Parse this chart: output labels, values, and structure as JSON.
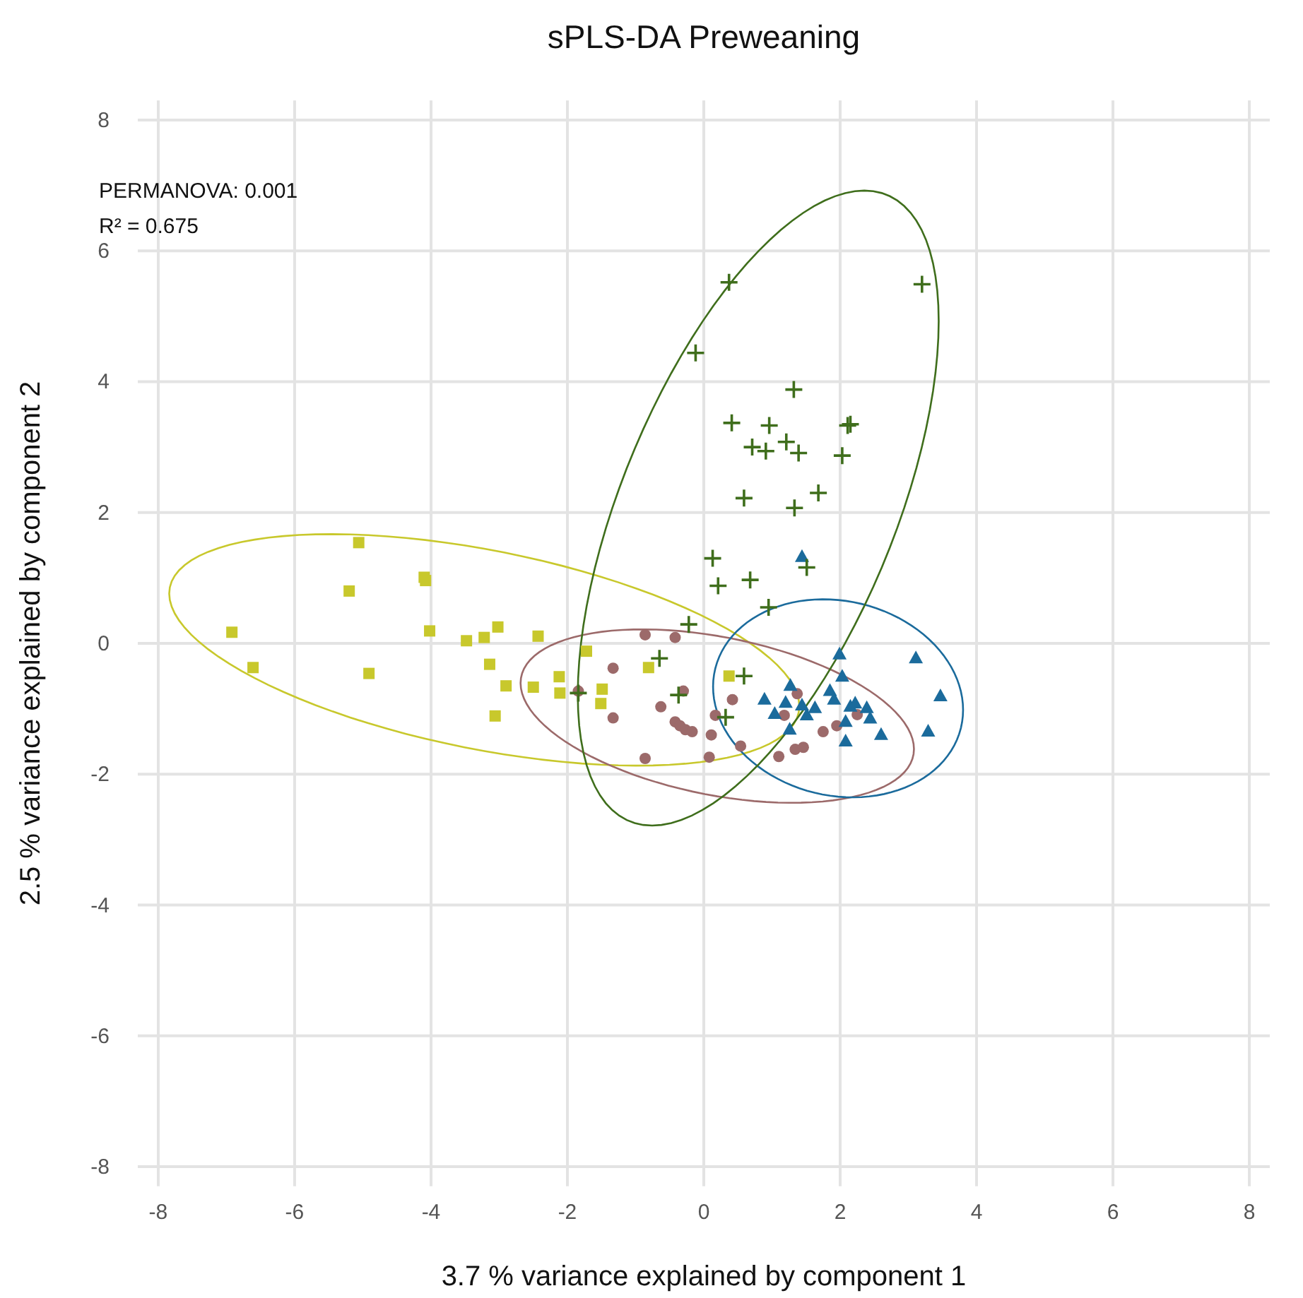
{
  "chart_data": {
    "type": "scatter",
    "title": "sPLS-DA Preweaning",
    "xlabel": "3.7 % variance explained by component 1",
    "ylabel": "2.5 % variance explained by component 2",
    "annotations": [
      "PERMANOVA: 0.001",
      "R² = 0.675"
    ],
    "xlim": [
      -8.3,
      8.3
    ],
    "ylim": [
      -8.3,
      8.3
    ],
    "xticks": [
      -8,
      -6,
      -4,
      -2,
      0,
      2,
      4,
      6,
      8
    ],
    "yticks": [
      -8,
      -6,
      -4,
      -2,
      0,
      2,
      4,
      6,
      8
    ],
    "grid": true,
    "series": [
      {
        "marker": "square",
        "color": "#c8c82c",
        "x": [
          -5.06,
          -5.2,
          -4.1,
          -4.08,
          -6.92,
          -6.61,
          -4.91,
          -4.02,
          -3.48,
          -3.22,
          -3.02,
          -2.43,
          -3.14,
          -2.9,
          -2.5,
          -3.06,
          -2.12,
          -2.11,
          -1.72,
          -1.49,
          -1.51,
          -0.81,
          0.37
        ],
        "values": [
          1.54,
          0.8,
          1.01,
          0.96,
          0.17,
          -0.37,
          -0.46,
          0.19,
          0.04,
          0.09,
          0.25,
          0.11,
          -0.32,
          -0.65,
          -0.67,
          -1.11,
          -0.51,
          -0.76,
          -0.12,
          -0.7,
          -0.92,
          -0.37,
          -0.5
        ]
      },
      {
        "marker": "circle",
        "color": "#9c6a6a",
        "x": [
          -0.86,
          -0.42,
          -1.33,
          -1.84,
          -0.3,
          -0.63,
          -1.33,
          -0.42,
          -0.35,
          -0.27,
          -0.17,
          0.11,
          0.42,
          0.17,
          -0.86,
          0.08,
          0.54,
          1.1,
          1.34,
          1.46,
          1.37,
          1.18,
          1.75,
          1.95,
          2.25
        ],
        "values": [
          0.13,
          0.09,
          -0.38,
          -0.73,
          -0.73,
          -0.97,
          -1.14,
          -1.2,
          -1.26,
          -1.32,
          -1.35,
          -1.4,
          -0.86,
          -1.1,
          -1.76,
          -1.74,
          -1.57,
          -1.73,
          -1.62,
          -1.59,
          -0.77,
          -1.1,
          -1.35,
          -1.26,
          -1.09
        ]
      },
      {
        "marker": "triangle",
        "color": "#1b6b9c",
        "x": [
          1.99,
          3.11,
          3.47,
          3.29,
          2.03,
          1.27,
          1.85,
          1.91,
          0.89,
          1.2,
          1.44,
          1.63,
          1.51,
          1.04,
          2.15,
          2.22,
          2.39,
          2.08,
          2.44,
          2.6,
          2.08,
          1.26,
          1.44
        ],
        "values": [
          -0.17,
          -0.23,
          -0.81,
          -1.35,
          -0.51,
          -0.65,
          -0.73,
          -0.86,
          -0.86,
          -0.91,
          -0.95,
          -0.99,
          -1.1,
          -1.08,
          -0.97,
          -0.92,
          -0.99,
          -1.2,
          -1.15,
          -1.4,
          -1.5,
          -1.32,
          1.32
        ]
      },
      {
        "marker": "cross",
        "color": "#3f6e1c",
        "x": [
          0.37,
          3.2,
          -0.12,
          1.32,
          0.41,
          0.96,
          2.15,
          2.11,
          0.71,
          0.91,
          1.21,
          1.39,
          2.03,
          0.59,
          1.68,
          1.33,
          0.13,
          1.51,
          0.21,
          0.68,
          0.95,
          -0.22,
          -0.65,
          0.59,
          -0.37,
          0.32,
          -1.84
        ],
        "values": [
          5.52,
          5.49,
          4.44,
          3.88,
          3.37,
          3.33,
          3.35,
          3.33,
          3.0,
          2.94,
          3.08,
          2.91,
          2.87,
          2.22,
          2.3,
          2.07,
          1.3,
          1.16,
          0.88,
          0.97,
          0.55,
          0.29,
          -0.23,
          -0.5,
          -0.79,
          -1.13,
          -0.76
        ]
      }
    ]
  }
}
